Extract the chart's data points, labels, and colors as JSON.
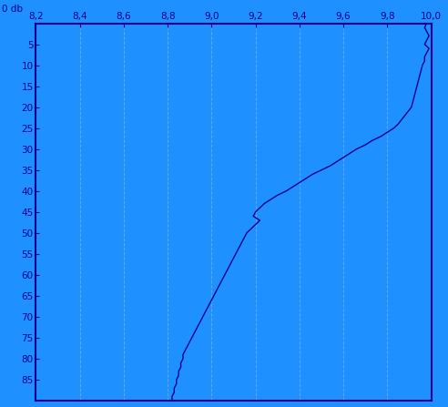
{
  "bg_color": "#1E90FF",
  "line_color": "#00008B",
  "xlim": [
    8.2,
    10.0
  ],
  "ylim": [
    90,
    0
  ],
  "xticks": [
    8.2,
    8.4,
    8.6,
    8.8,
    9.0,
    9.2,
    9.4,
    9.6,
    9.8,
    10.0
  ],
  "yticks": [
    0,
    5,
    10,
    15,
    20,
    25,
    30,
    35,
    40,
    45,
    50,
    55,
    60,
    65,
    70,
    75,
    80,
    85
  ],
  "grid_color": "#70AADD",
  "profile_depths": [
    0,
    1,
    2,
    3,
    4,
    5,
    6,
    7,
    8,
    9,
    10,
    12,
    14,
    16,
    18,
    20,
    22,
    24,
    25,
    26,
    27,
    28,
    29,
    30,
    31,
    32,
    33,
    34,
    35,
    36,
    37,
    38,
    39,
    40,
    41,
    42,
    43,
    44,
    45,
    46,
    47,
    48,
    49,
    50,
    51,
    52,
    53,
    54,
    55,
    56,
    57,
    58,
    59,
    60,
    61,
    62,
    63,
    64,
    65,
    66,
    67,
    68,
    69,
    70,
    71,
    72,
    73,
    74,
    75,
    76,
    77,
    78,
    79,
    80,
    81,
    82,
    83,
    84,
    85,
    86,
    87,
    88,
    89,
    90
  ],
  "profile_values": [
    9.98,
    9.97,
    9.98,
    9.99,
    9.98,
    9.97,
    9.99,
    9.98,
    9.97,
    9.97,
    9.96,
    9.95,
    9.94,
    9.93,
    9.92,
    9.91,
    9.88,
    9.85,
    9.83,
    9.8,
    9.77,
    9.73,
    9.7,
    9.66,
    9.63,
    9.6,
    9.57,
    9.54,
    9.5,
    9.46,
    9.43,
    9.4,
    9.37,
    9.34,
    9.3,
    9.27,
    9.24,
    9.22,
    9.2,
    9.19,
    9.22,
    9.2,
    9.18,
    9.16,
    9.15,
    9.14,
    9.13,
    9.12,
    9.11,
    9.1,
    9.09,
    9.08,
    9.07,
    9.06,
    9.05,
    9.04,
    9.03,
    9.02,
    9.01,
    9.0,
    8.99,
    8.98,
    8.97,
    8.96,
    8.95,
    8.94,
    8.93,
    8.92,
    8.91,
    8.9,
    8.89,
    8.88,
    8.87,
    8.87,
    8.86,
    8.86,
    8.85,
    8.85,
    8.84,
    8.84,
    8.83,
    8.83,
    8.82,
    8.82
  ]
}
